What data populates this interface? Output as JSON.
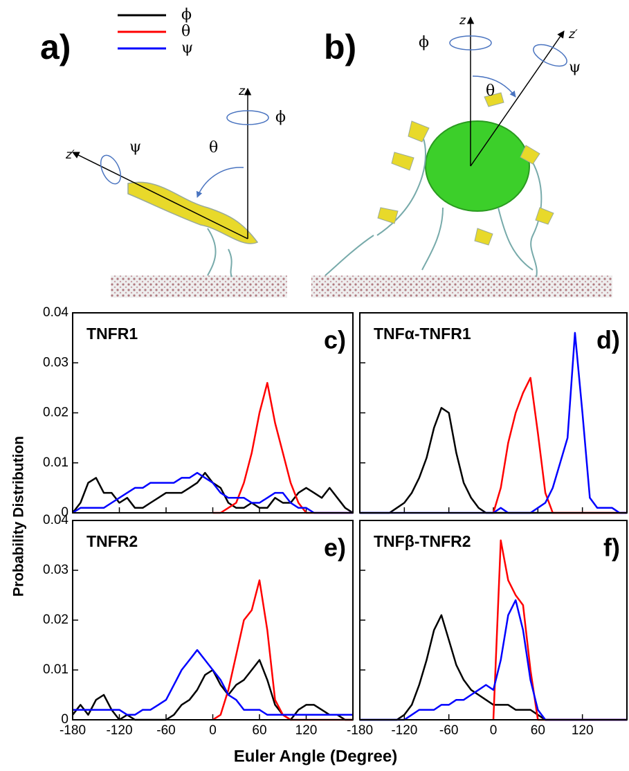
{
  "figure": {
    "panel_a": {
      "label": "a)",
      "z": "z",
      "z_prime": "z′",
      "phi": "ϕ",
      "theta": "θ",
      "psi": "ψ"
    },
    "panel_b": {
      "label": "b)",
      "z": "z",
      "z_prime": "z′",
      "phi": "ϕ",
      "theta": "θ",
      "psi": "ψ"
    },
    "xlabel": "Euler Angle (Degree)",
    "ylabel": "Probability Distribution"
  },
  "chart_data": [
    {
      "type": "line",
      "title": "TNFR1",
      "panel": "c)",
      "x": [
        -180,
        -170,
        -160,
        -150,
        -140,
        -130,
        -120,
        -110,
        -100,
        -90,
        -80,
        -70,
        -60,
        -50,
        -40,
        -30,
        -20,
        -10,
        0,
        10,
        20,
        30,
        40,
        50,
        60,
        70,
        80,
        90,
        100,
        110,
        120,
        130,
        140,
        150,
        160,
        170,
        180
      ],
      "series": [
        {
          "name": "ϕ",
          "color": "#000000",
          "values": [
            0,
            0.002,
            0.006,
            0.007,
            0.004,
            0.004,
            0.002,
            0.003,
            0.001,
            0.001,
            0.002,
            0.003,
            0.004,
            0.004,
            0.004,
            0.005,
            0.006,
            0.008,
            0.006,
            0.005,
            0.002,
            0.001,
            0.001,
            0.002,
            0.001,
            0.001,
            0.003,
            0.002,
            0.002,
            0.004,
            0.005,
            0.004,
            0.003,
            0.005,
            0.003,
            0.001,
            0
          ]
        },
        {
          "name": "θ",
          "color": "#ff0000",
          "values": [
            null,
            null,
            null,
            null,
            null,
            null,
            null,
            null,
            null,
            null,
            null,
            null,
            null,
            null,
            null,
            null,
            null,
            null,
            0,
            0,
            0.001,
            0.002,
            0.006,
            0.012,
            0.02,
            0.026,
            0.018,
            0.012,
            0.006,
            0.002,
            0,
            0,
            0,
            0,
            0,
            0,
            0
          ]
        },
        {
          "name": "ψ",
          "color": "#0000ff",
          "values": [
            0,
            0.001,
            0.001,
            0.001,
            0.001,
            0.002,
            0.003,
            0.004,
            0.005,
            0.005,
            0.006,
            0.006,
            0.006,
            0.006,
            0.007,
            0.007,
            0.008,
            0.007,
            0.006,
            0.004,
            0.003,
            0.003,
            0.003,
            0.002,
            0.002,
            0.003,
            0.004,
            0.004,
            0.002,
            0.001,
            0.001,
            0,
            0,
            0,
            0,
            0,
            0
          ]
        }
      ],
      "xlim": [
        -180,
        180
      ],
      "xticks": [
        -180,
        -120,
        -60,
        0,
        60,
        120
      ],
      "xtick_labels": false,
      "ylim": [
        0,
        0.04
      ],
      "yticks": [
        0,
        0.01,
        0.02,
        0.03,
        0.04
      ],
      "ytick_labels": true
    },
    {
      "type": "line",
      "title": "TNFα-TNFR1",
      "panel": "d)",
      "x": [
        -180,
        -170,
        -160,
        -150,
        -140,
        -130,
        -120,
        -110,
        -100,
        -90,
        -80,
        -70,
        -60,
        -50,
        -40,
        -30,
        -20,
        -10,
        0,
        10,
        20,
        30,
        40,
        50,
        60,
        70,
        80,
        90,
        100,
        110,
        120,
        130,
        140,
        150,
        160,
        170,
        180
      ],
      "series": [
        {
          "name": "ϕ",
          "color": "#000000",
          "values": [
            0,
            0,
            0,
            0,
            0,
            0.001,
            0.002,
            0.004,
            0.007,
            0.011,
            0.017,
            0.021,
            0.02,
            0.012,
            0.006,
            0.003,
            0.001,
            0,
            0,
            0,
            0,
            0,
            0,
            0,
            0,
            0,
            0,
            0,
            0,
            0,
            0,
            0,
            0,
            0,
            0,
            0,
            0
          ]
        },
        {
          "name": "θ",
          "color": "#ff0000",
          "values": [
            null,
            null,
            null,
            null,
            null,
            null,
            null,
            null,
            null,
            null,
            null,
            null,
            null,
            null,
            null,
            null,
            null,
            null,
            0,
            0.005,
            0.014,
            0.02,
            0.024,
            0.027,
            0.016,
            0.004,
            0,
            0,
            0,
            0,
            0,
            0,
            0,
            0,
            0,
            0,
            0
          ]
        },
        {
          "name": "ψ",
          "color": "#0000ff",
          "values": [
            0,
            0,
            0,
            0,
            0,
            0,
            0,
            0,
            0,
            0,
            0,
            0,
            0,
            0,
            0,
            0,
            0,
            0,
            0,
            0.001,
            0,
            0,
            0,
            0,
            0.001,
            0.002,
            0.005,
            0.01,
            0.015,
            0.036,
            0.02,
            0.003,
            0.001,
            0.001,
            0.001,
            0,
            0
          ]
        }
      ],
      "xlim": [
        -180,
        180
      ],
      "xticks": [
        -180,
        -120,
        -60,
        0,
        60,
        120
      ],
      "xtick_labels": false,
      "ylim": [
        0,
        0.04
      ],
      "yticks": [
        0,
        0.01,
        0.02,
        0.03,
        0.04
      ],
      "ytick_labels": false
    },
    {
      "type": "line",
      "title": "TNFR2",
      "panel": "e)",
      "x": [
        -180,
        -170,
        -160,
        -150,
        -140,
        -130,
        -120,
        -110,
        -100,
        -90,
        -80,
        -70,
        -60,
        -50,
        -40,
        -30,
        -20,
        -10,
        0,
        10,
        20,
        30,
        40,
        50,
        60,
        70,
        80,
        90,
        100,
        110,
        120,
        130,
        140,
        150,
        160,
        170,
        180
      ],
      "series": [
        {
          "name": "ϕ",
          "color": "#000000",
          "values": [
            0.001,
            0.003,
            0.001,
            0.004,
            0.005,
            0.002,
            0,
            0.001,
            0,
            0,
            0,
            0,
            0,
            0.001,
            0.003,
            0.004,
            0.006,
            0.009,
            0.01,
            0.007,
            0.005,
            0.007,
            0.008,
            0.01,
            0.012,
            0.008,
            0.003,
            0.001,
            0,
            0.002,
            0.003,
            0.003,
            0.002,
            0.001,
            0.001,
            0,
            0
          ]
        },
        {
          "name": "θ",
          "color": "#ff0000",
          "values": [
            null,
            null,
            null,
            null,
            null,
            null,
            null,
            null,
            null,
            null,
            null,
            null,
            null,
            null,
            null,
            null,
            null,
            null,
            0,
            0.001,
            0.006,
            0.013,
            0.02,
            0.022,
            0.028,
            0.018,
            0.004,
            0.001,
            0,
            0,
            0,
            0,
            0,
            0,
            0,
            0,
            0
          ]
        },
        {
          "name": "ψ",
          "color": "#0000ff",
          "values": [
            0.002,
            0.002,
            0.002,
            0.002,
            0.002,
            0.002,
            0.002,
            0.001,
            0.001,
            0.002,
            0.002,
            0.003,
            0.004,
            0.007,
            0.01,
            0.012,
            0.014,
            0.012,
            0.01,
            0.008,
            0.005,
            0.004,
            0.002,
            0.002,
            0.002,
            0.001,
            0.001,
            0.001,
            0.001,
            0.001,
            0.001,
            0.001,
            0.001,
            0.001,
            0.001,
            0.001,
            0.001
          ]
        }
      ],
      "xlim": [
        -180,
        180
      ],
      "xticks": [
        -180,
        -120,
        -60,
        0,
        60,
        120
      ],
      "xtick_labels": true,
      "ylim": [
        0,
        0.04
      ],
      "yticks": [
        0,
        0.01,
        0.02,
        0.03,
        0.04
      ],
      "ytick_labels": true
    },
    {
      "type": "line",
      "title": "TNFβ-TNFR2",
      "panel": "f)",
      "x": [
        -180,
        -170,
        -160,
        -150,
        -140,
        -130,
        -120,
        -110,
        -100,
        -90,
        -80,
        -70,
        -60,
        -50,
        -40,
        -30,
        -20,
        -10,
        0,
        10,
        20,
        30,
        40,
        50,
        60,
        70,
        80,
        90,
        100,
        110,
        120,
        130,
        140,
        150,
        160,
        170,
        180
      ],
      "series": [
        {
          "name": "ϕ",
          "color": "#000000",
          "values": [
            0,
            0,
            0,
            0,
            0,
            0,
            0.001,
            0.003,
            0.007,
            0.012,
            0.018,
            0.021,
            0.016,
            0.011,
            0.008,
            0.006,
            0.005,
            0.004,
            0.003,
            0.003,
            0.003,
            0.002,
            0.002,
            0.002,
            0.001,
            0,
            0,
            0,
            0,
            0,
            0,
            0,
            0,
            0,
            0,
            0,
            0
          ]
        },
        {
          "name": "θ",
          "color": "#ff0000",
          "values": [
            null,
            null,
            null,
            null,
            null,
            null,
            null,
            null,
            null,
            null,
            null,
            null,
            null,
            null,
            null,
            null,
            null,
            null,
            0,
            0.036,
            0.028,
            0.025,
            0.023,
            0.01,
            0,
            0,
            0,
            0,
            0,
            0,
            0,
            0,
            0,
            0,
            0,
            0,
            0
          ]
        },
        {
          "name": "ψ",
          "color": "#0000ff",
          "values": [
            0,
            0,
            0,
            0,
            0,
            0,
            0,
            0.001,
            0.002,
            0.002,
            0.002,
            0.003,
            0.003,
            0.004,
            0.004,
            0.005,
            0.006,
            0.007,
            0.006,
            0.012,
            0.021,
            0.024,
            0.018,
            0.008,
            0.002,
            0,
            0,
            0,
            0,
            0,
            0,
            0,
            0,
            0,
            0,
            0,
            0
          ]
        }
      ],
      "xlim": [
        -180,
        180
      ],
      "xticks": [
        -180,
        -120,
        -60,
        0,
        60,
        120
      ],
      "xtick_labels": true,
      "ylim": [
        0,
        0.04
      ],
      "yticks": [
        0,
        0.01,
        0.02,
        0.03,
        0.04
      ],
      "ytick_labels": false
    }
  ]
}
